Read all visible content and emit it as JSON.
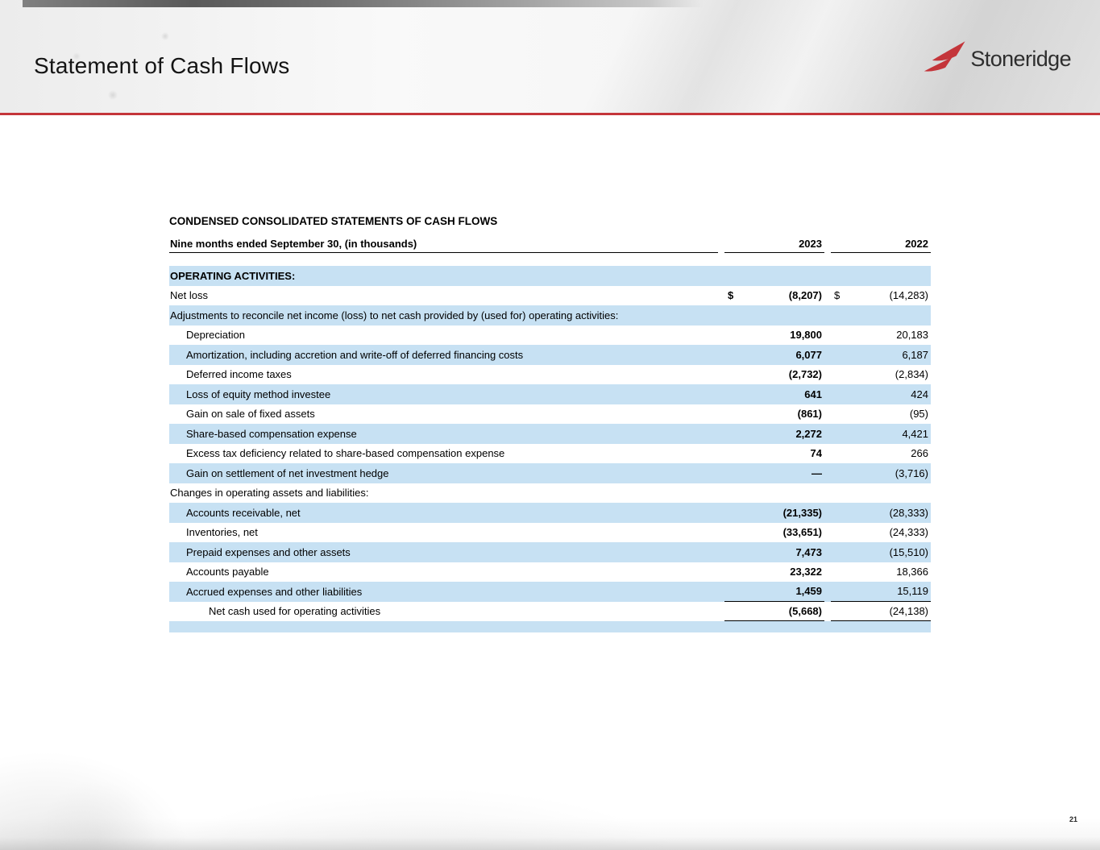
{
  "slide": {
    "title": "Statement of Cash Flows",
    "logo_text": "Stoneridge",
    "page_number": "21"
  },
  "colors": {
    "accent_red": "#c4353a",
    "row_blue": "#c7e1f3"
  },
  "table": {
    "title": "CONDENSED CONSOLIDATED STATEMENTS OF CASH FLOWS",
    "period_label": "Nine months ended September 30, (in thousands)",
    "col_2023": "2023",
    "col_2022": "2022",
    "currency_symbol": "$",
    "rows": [
      {
        "label": "OPERATING ACTIVITIES:",
        "indent": 0,
        "shaded": true,
        "bold": true
      },
      {
        "label": "Net loss",
        "v2023": "(8,207)",
        "v2022": "(14,283)",
        "indent": 0,
        "shaded": false,
        "dollar": true
      },
      {
        "label": "Adjustments to reconcile net income (loss) to net cash provided by (used for) operating activities:",
        "indent": 0,
        "shaded": true
      },
      {
        "label": "Depreciation",
        "v2023": "19,800",
        "v2022": "20,183",
        "indent": 1,
        "shaded": false
      },
      {
        "label": "Amortization, including accretion and write-off of deferred financing costs",
        "v2023": "6,077",
        "v2022": "6,187",
        "indent": 1,
        "shaded": true
      },
      {
        "label": "Deferred income taxes",
        "v2023": "(2,732)",
        "v2022": "(2,834)",
        "indent": 1,
        "shaded": false
      },
      {
        "label": "Loss of equity method investee",
        "v2023": "641",
        "v2022": "424",
        "indent": 1,
        "shaded": true
      },
      {
        "label": "Gain on sale of fixed assets",
        "v2023": "(861)",
        "v2022": "(95)",
        "indent": 1,
        "shaded": false
      },
      {
        "label": "Share-based compensation expense",
        "v2023": "2,272",
        "v2022": "4,421",
        "indent": 1,
        "shaded": true
      },
      {
        "label": "Excess tax deficiency related to share-based compensation expense",
        "v2023": "74",
        "v2022": "266",
        "indent": 1,
        "shaded": false
      },
      {
        "label": "Gain on settlement of net investment hedge",
        "v2023": "—",
        "v2022": "(3,716)",
        "indent": 1,
        "shaded": true
      },
      {
        "label": "Changes in operating assets and liabilities:",
        "indent": 0,
        "shaded": false
      },
      {
        "label": "Accounts receivable, net",
        "v2023": "(21,335)",
        "v2022": "(28,333)",
        "indent": 1,
        "shaded": true
      },
      {
        "label": "Inventories, net",
        "v2023": "(33,651)",
        "v2022": "(24,333)",
        "indent": 1,
        "shaded": false
      },
      {
        "label": "Prepaid expenses and other assets",
        "v2023": "7,473",
        "v2022": "(15,510)",
        "indent": 1,
        "shaded": true
      },
      {
        "label": "Accounts payable",
        "v2023": "23,322",
        "v2022": "18,366",
        "indent": 1,
        "shaded": false
      },
      {
        "label": "Accrued expenses and other liabilities",
        "v2023": "1,459",
        "v2022": "15,119",
        "indent": 1,
        "shaded": true,
        "underline": true
      },
      {
        "label": "Net cash used for operating activities",
        "v2023": "(5,668)",
        "v2022": "(24,138)",
        "indent": 2,
        "shaded": false,
        "underline": true
      },
      {
        "label": "",
        "indent": 0,
        "shaded": true,
        "spacer": true
      }
    ]
  }
}
